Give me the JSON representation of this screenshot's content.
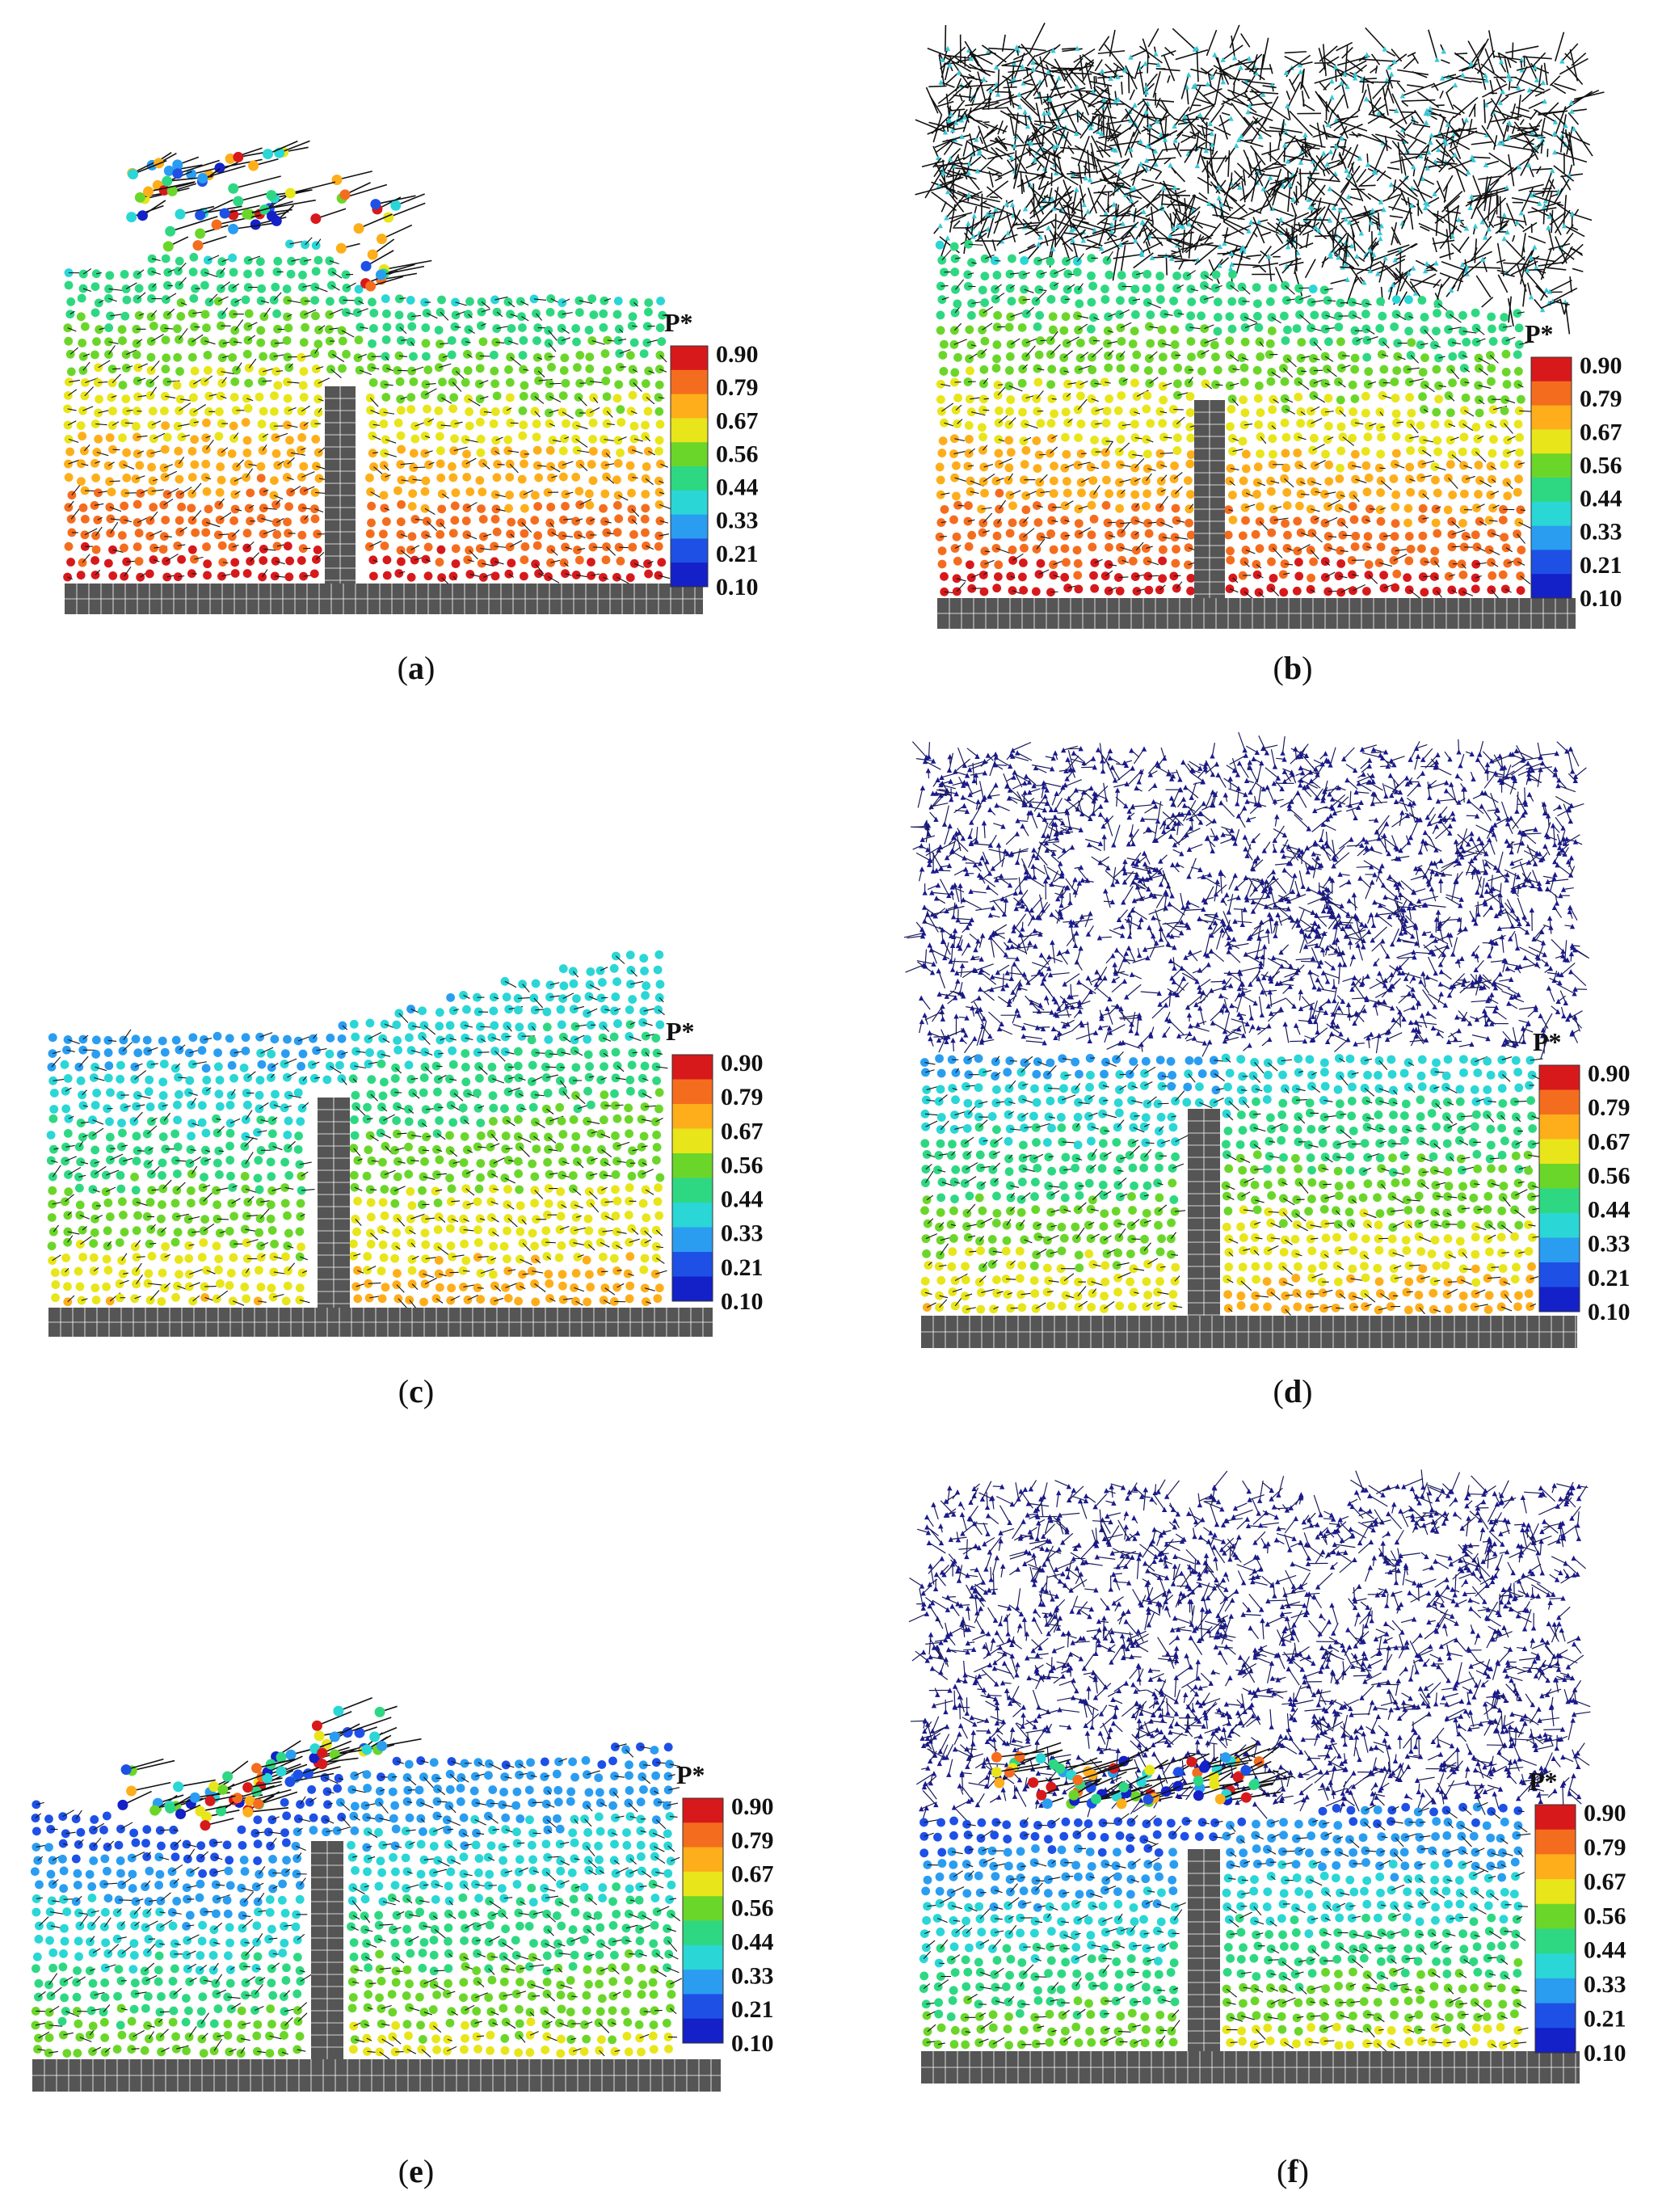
{
  "figure": {
    "panels": [
      {
        "letter": "a",
        "top_is_vapor": false
      },
      {
        "letter": "b",
        "top_is_vapor": true
      },
      {
        "letter": "c",
        "top_is_vapor": false
      },
      {
        "letter": "d",
        "top_is_vapor": true
      },
      {
        "letter": "e",
        "top_is_vapor": false
      },
      {
        "letter": "f",
        "top_is_vapor": true
      }
    ],
    "colorbar": {
      "title": "P*",
      "ticks": [
        "0.90",
        "0.79",
        "0.67",
        "0.56",
        "0.44",
        "0.33",
        "0.21",
        "0.10"
      ],
      "colors": [
        "#d7191c",
        "#f46d1e",
        "#fdae1a",
        "#e8e51a",
        "#6bd62a",
        "#2ed882",
        "#2ad6d6",
        "#2a9df0",
        "#1e50e6",
        "#1420c8"
      ]
    },
    "colors": {
      "wall": "#555555",
      "grid_line": "#ffffff",
      "arrow": "#111111",
      "vapor_particle": "#1a1a8c"
    }
  }
}
